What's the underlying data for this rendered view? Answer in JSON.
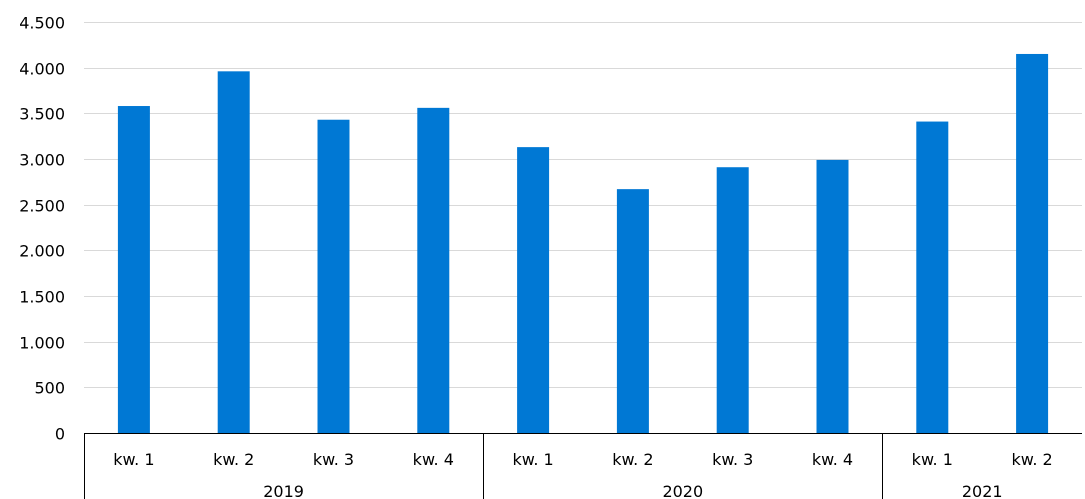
{
  "chart_data": {
    "type": "bar",
    "title": "",
    "xlabel": "",
    "ylabel": "",
    "ylim": [
      0,
      4500
    ],
    "yticks": [
      0,
      500,
      1000,
      1500,
      2000,
      2500,
      3000,
      3500,
      4000,
      4500
    ],
    "ytick_labels": [
      "0",
      "500",
      "1.000",
      "1.500",
      "2.000",
      "2.500",
      "3.000",
      "3.500",
      "4.000",
      "4.500"
    ],
    "grid": true,
    "legend": "none",
    "categories": [
      "kw. 1",
      "kw. 2",
      "kw. 3",
      "kw. 4",
      "kw. 1",
      "kw. 2",
      "kw. 3",
      "kw. 4",
      "kw. 1",
      "kw. 2"
    ],
    "groups": [
      {
        "label": "2019",
        "count": 4
      },
      {
        "label": "2020",
        "count": 4
      },
      {
        "label": "2021",
        "count": 2
      }
    ],
    "series": [
      {
        "values": [
          3580,
          3960,
          3430,
          3560,
          3130,
          2670,
          2910,
          2990,
          3410,
          4150
        ],
        "color": "#0078d4"
      }
    ]
  }
}
